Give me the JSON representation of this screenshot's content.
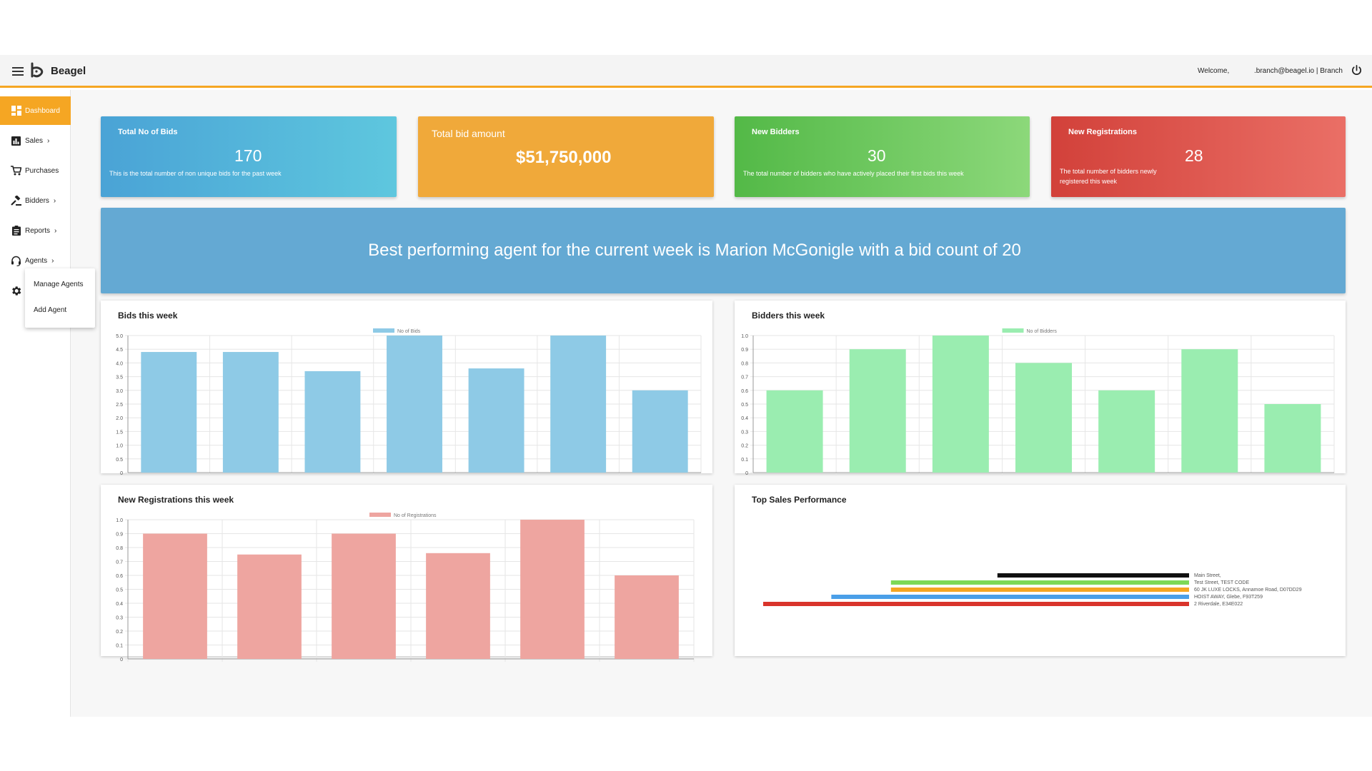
{
  "header": {
    "brand": "Beagel",
    "welcome": "Welcome,",
    "user": ".branch@beagel.io | Branch"
  },
  "sidebar": {
    "items": [
      {
        "label": "Dashboard",
        "icon": "dashboard-icon",
        "active": true,
        "chevron": ""
      },
      {
        "label": "Sales",
        "icon": "bar-chart-icon",
        "active": false,
        "chevron": "›"
      },
      {
        "label": "Purchases",
        "icon": "cart-icon",
        "active": false,
        "chevron": ""
      },
      {
        "label": "Bidders",
        "icon": "gavel-icon",
        "active": false,
        "chevron": "›"
      },
      {
        "label": "Reports",
        "icon": "clipboard-icon",
        "active": false,
        "chevron": "›"
      },
      {
        "label": "Agents",
        "icon": "headset-icon",
        "active": false,
        "chevron": "›"
      }
    ],
    "settings_icon": "gear-icon",
    "submenu": [
      "Manage Agents",
      "Add Agent"
    ]
  },
  "cards": [
    {
      "title": "Total No of Bids",
      "value": "170",
      "description": "This is the total number of non unique bids for the past week",
      "color": "#4aa3d6"
    },
    {
      "title": "Total bid amount",
      "value": "$51,750,000",
      "description": "",
      "color": "#f0a93a"
    },
    {
      "title": "New Bidders",
      "value": "30",
      "description": "The total number of bidders who have actively placed their first bids this week",
      "color": "#53b947"
    },
    {
      "title": "New Registrations",
      "value": "28",
      "description": "The total number of bidders newly registered this week",
      "color": "#d2413a"
    }
  ],
  "banner": {
    "text": "Best performing agent for the current week is Marion McGonigle with a bid count of 20"
  },
  "chart_data": [
    {
      "type": "bar",
      "title": "Bids this week",
      "series": [
        {
          "name": "No of Bids",
          "values": [
            4.4,
            4.4,
            3.7,
            5.0,
            3.8,
            5.0,
            3.0
          ]
        }
      ],
      "ylim": [
        0,
        5.0
      ],
      "yticks": [
        "0",
        "0.5",
        "1.0",
        "1.5",
        "2.0",
        "2.5",
        "3.0",
        "3.5",
        "4.0",
        "4.5",
        "5.0"
      ],
      "color": "#8ecae6",
      "grid": true,
      "legend": "top-center"
    },
    {
      "type": "bar",
      "title": "Bidders this week",
      "series": [
        {
          "name": "No of Bidders",
          "values": [
            0.6,
            0.9,
            1.0,
            0.8,
            0.6,
            0.9,
            0.5
          ]
        }
      ],
      "ylim": [
        0,
        1.0
      ],
      "yticks": [
        "0",
        "0.1",
        "0.2",
        "0.3",
        "0.4",
        "0.5",
        "0.6",
        "0.7",
        "0.8",
        "0.9",
        "1.0"
      ],
      "color": "#9aedb0",
      "grid": true,
      "legend": "top-center"
    },
    {
      "type": "bar",
      "title": "New Registrations this week",
      "series": [
        {
          "name": "No of Registrations",
          "values": [
            0.9,
            0.75,
            0.9,
            0.76,
            1.0,
            0.6
          ]
        }
      ],
      "ylim": [
        0,
        1.0
      ],
      "yticks": [
        "0",
        "0.1",
        "0.2",
        "0.3",
        "0.4",
        "0.5",
        "0.6",
        "0.7",
        "0.8",
        "0.9",
        "1.0"
      ],
      "color": "#eea5a0",
      "grid": true,
      "legend": "top-center"
    },
    {
      "type": "bar",
      "title": "Top Sales Performance",
      "orientation": "horizontal",
      "categories": [
        "Main Street,",
        "Test Street, TEST CODE",
        "60 JK LUXE LOCKS, Annamoe Road, D07DD29",
        "HOIST AWAY, Glebe, F93T259",
        "2 Riverdale, E34E022"
      ],
      "values": [
        0.45,
        0.7,
        0.7,
        0.84,
        1.0
      ],
      "colors": [
        "#111111",
        "#7ed957",
        "#f5a623",
        "#4a9fe8",
        "#d9342b"
      ],
      "legend": "right"
    }
  ]
}
